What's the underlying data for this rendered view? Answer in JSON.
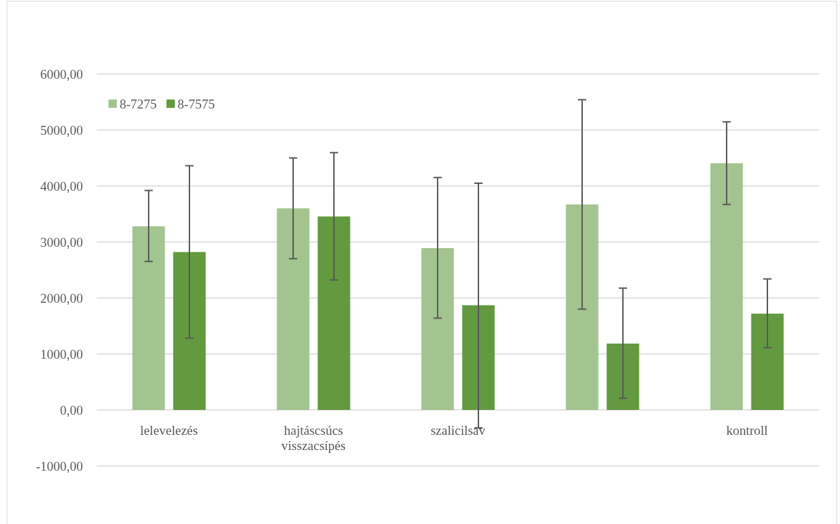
{
  "chart_data": {
    "type": "bar",
    "categories": [
      "lelevelezés",
      "hajtáscsúcs visszacsípés",
      "szalicilsav",
      null,
      "kontroll"
    ],
    "series": [
      {
        "name": "8-7275",
        "color": "#a2c48f",
        "values": [
          3280,
          3600,
          2890,
          3670,
          4405
        ],
        "errors": [
          [
            2650,
            3920
          ],
          [
            2700,
            4500
          ],
          [
            1640,
            4150
          ],
          [
            1800,
            5540
          ],
          [
            3670,
            5145
          ]
        ]
      },
      {
        "name": "8-7575",
        "color": "#63993f",
        "values": [
          2820,
          3455,
          1870,
          1185,
          1720
        ],
        "errors": [
          [
            1280,
            4360
          ],
          [
            2320,
            4595
          ],
          [
            -320,
            4050
          ],
          [
            210,
            2175
          ],
          [
            1110,
            2340
          ]
        ]
      }
    ],
    "ylim": [
      -1000,
      6000
    ],
    "yticks": [
      {
        "value": -1000,
        "label": "-1000,00"
      },
      {
        "value": 0,
        "label": "0,00"
      },
      {
        "value": 1000,
        "label": "1000,00"
      },
      {
        "value": 2000,
        "label": "2000,00"
      },
      {
        "value": 3000,
        "label": "3000,00"
      },
      {
        "value": 4000,
        "label": "4000,00"
      },
      {
        "value": 5000,
        "label": "5000,00"
      },
      {
        "value": 6000,
        "label": "6000,00"
      }
    ],
    "grid": "y",
    "legend": "top left"
  }
}
